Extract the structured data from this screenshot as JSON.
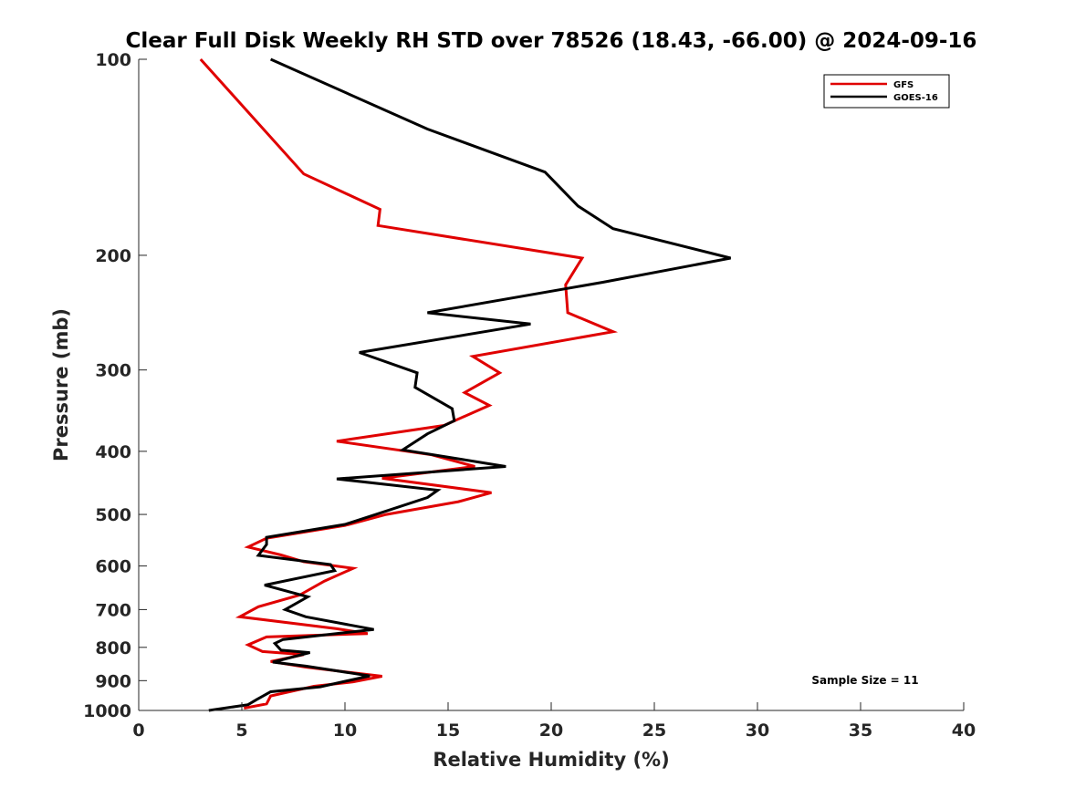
{
  "chart_data": {
    "type": "line",
    "title": "Clear Full Disk Weekly RH STD over 78526 (18.43, -66.00) @ 2024-09-16",
    "xlabel": "Relative Humidity (%)",
    "ylabel": "Pressure (mb)",
    "xlim": [
      0,
      40
    ],
    "ylim": [
      100,
      1000
    ],
    "yscale": "log",
    "y_reversed": true,
    "xticks": [
      0,
      5,
      10,
      15,
      20,
      25,
      30,
      35,
      40
    ],
    "yticks": [
      100,
      200,
      300,
      400,
      500,
      600,
      700,
      800,
      900,
      1000
    ],
    "grid": false,
    "legend_position": "top-right",
    "annotation": "Sample Size = 11",
    "colors": {
      "GFS": "#e00000",
      "GOES-16": "#000000"
    },
    "series": [
      {
        "name": "GFS",
        "points": [
          [
            3.0,
            100
          ],
          [
            8.0,
            150
          ],
          [
            11.7,
            170
          ],
          [
            11.6,
            180
          ],
          [
            21.5,
            202
          ],
          [
            20.7,
            222
          ],
          [
            20.8,
            245
          ],
          [
            23.0,
            262
          ],
          [
            16.2,
            286
          ],
          [
            17.5,
            303
          ],
          [
            15.8,
            325
          ],
          [
            17.0,
            340
          ],
          [
            14.8,
            365
          ],
          [
            9.6,
            386
          ],
          [
            14.2,
            405
          ],
          [
            16.3,
            422
          ],
          [
            11.8,
            440
          ],
          [
            17.1,
            463
          ],
          [
            15.5,
            478
          ],
          [
            12.0,
            500
          ],
          [
            10.0,
            520
          ],
          [
            6.2,
            544
          ],
          [
            5.3,
            561
          ],
          [
            6.9,
            577
          ],
          [
            8.0,
            591
          ],
          [
            10.4,
            605
          ],
          [
            9.0,
            633
          ],
          [
            7.8,
            665
          ],
          [
            5.8,
            693
          ],
          [
            4.9,
            718
          ],
          [
            9.6,
            749
          ],
          [
            11.1,
            762
          ],
          [
            6.2,
            771
          ],
          [
            5.3,
            793
          ],
          [
            6.0,
            812
          ],
          [
            8.0,
            821
          ],
          [
            6.4,
            841
          ],
          [
            8.1,
            858
          ],
          [
            11.8,
            886
          ],
          [
            10.4,
            904
          ],
          [
            8.5,
            918
          ],
          [
            6.4,
            950
          ],
          [
            6.2,
            977
          ],
          [
            5.1,
            992
          ]
        ]
      },
      {
        "name": "GOES-16",
        "points": [
          [
            6.4,
            100
          ],
          [
            14.0,
            128
          ],
          [
            19.7,
            149
          ],
          [
            21.3,
            168
          ],
          [
            23.0,
            182
          ],
          [
            28.7,
            202
          ],
          [
            22.5,
            220
          ],
          [
            14.0,
            245
          ],
          [
            19.0,
            255
          ],
          [
            10.7,
            282
          ],
          [
            13.5,
            303
          ],
          [
            13.4,
            319
          ],
          [
            15.2,
            344
          ],
          [
            15.3,
            359
          ],
          [
            14.0,
            376
          ],
          [
            12.8,
            398
          ],
          [
            17.8,
            422
          ],
          [
            9.6,
            441
          ],
          [
            14.5,
            459
          ],
          [
            14.0,
            471
          ],
          [
            11.5,
            500
          ],
          [
            10.0,
            518
          ],
          [
            6.2,
            542
          ],
          [
            6.2,
            556
          ],
          [
            5.8,
            578
          ],
          [
            9.3,
            597
          ],
          [
            9.5,
            610
          ],
          [
            6.1,
            642
          ],
          [
            8.2,
            669
          ],
          [
            7.1,
            700
          ],
          [
            8.1,
            718
          ],
          [
            11.4,
            751
          ],
          [
            7.0,
            778
          ],
          [
            6.6,
            789
          ],
          [
            6.9,
            808
          ],
          [
            8.3,
            815
          ],
          [
            6.5,
            843
          ],
          [
            8.1,
            855
          ],
          [
            11.2,
            885
          ],
          [
            8.8,
            920
          ],
          [
            6.4,
            936
          ],
          [
            5.7,
            963
          ],
          [
            5.3,
            980
          ],
          [
            3.4,
            1000
          ]
        ]
      }
    ]
  }
}
